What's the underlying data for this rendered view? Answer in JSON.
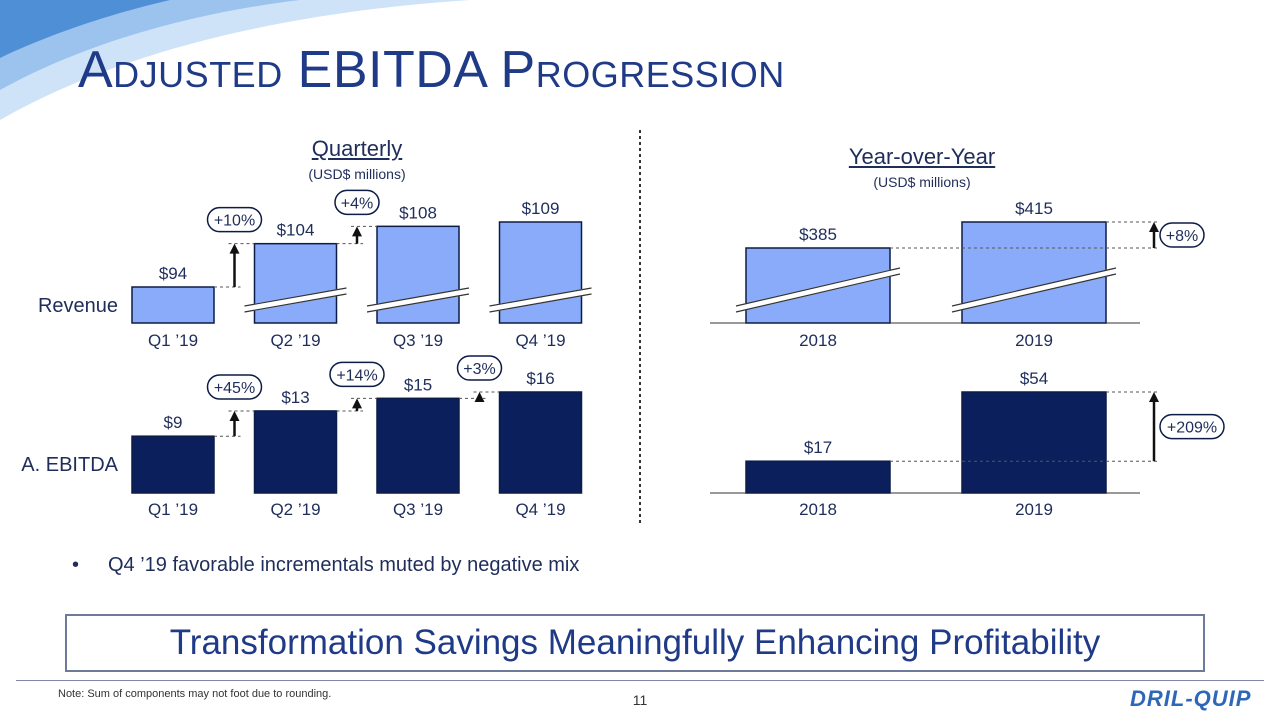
{
  "slide": {
    "title": "Adjusted EBITDA Progression",
    "quarterly_title": "Quarterly",
    "quarterly_subtitle": "(USD$ millions)",
    "yoy_title": "Year-over-Year",
    "yoy_subtitle": "(USD$ millions)",
    "bullets": [
      "Q4 ’19 favorable incrementals muted by negative mix"
    ],
    "banner": "Transformation Savings Meaningfully Enhancing Profitability",
    "footnote": "Note: Sum of components may not foot due to rounding.",
    "page_number": "11",
    "logo": "DRIL-QUIP"
  },
  "colors": {
    "revenue_fill": "#8aabf9",
    "ebitda_fill": "#0a1f5c",
    "bar_stroke": "#0d1c46",
    "title": "#1f3a87",
    "text": "#1f2d5a"
  },
  "chart_data": [
    {
      "type": "bar",
      "row_label": "Revenue",
      "categories": [
        "Q1 ’19",
        "Q2 ’19",
        "Q3 ’19",
        "Q4 ’19"
      ],
      "values": [
        94,
        104,
        108,
        109
      ],
      "value_labels": [
        "$94",
        "$104",
        "$108",
        "$109"
      ],
      "changes": [
        "+10%",
        "+4%"
      ],
      "axis_break": true
    },
    {
      "type": "bar",
      "row_label": "A. EBITDA",
      "categories": [
        "Q1 ’19",
        "Q2 ’19",
        "Q3 ’19",
        "Q4 ’19"
      ],
      "values": [
        9,
        13,
        15,
        16
      ],
      "value_labels": [
        "$9",
        "$13",
        "$15",
        "$16"
      ],
      "changes": [
        "+45%",
        "+14%",
        "+3%"
      ]
    },
    {
      "type": "bar",
      "row_label": "Revenue",
      "categories": [
        "2018",
        "2019"
      ],
      "values": [
        385,
        415
      ],
      "value_labels": [
        "$385",
        "$415"
      ],
      "changes": [
        "+8%"
      ],
      "axis_break": true
    },
    {
      "type": "bar",
      "row_label": "A. EBITDA",
      "categories": [
        "2018",
        "2019"
      ],
      "values": [
        17,
        54
      ],
      "value_labels": [
        "$17",
        "$54"
      ],
      "changes": [
        "+209%"
      ]
    }
  ]
}
